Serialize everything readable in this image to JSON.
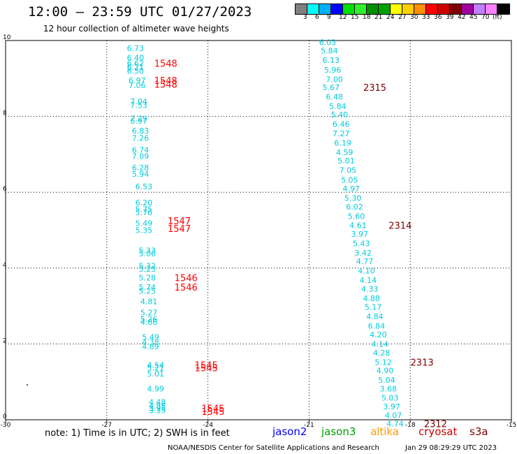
{
  "title": "12:00 — 23:59 UTC 01/27/2023",
  "subtitle": "12 hour collection of altimeter wave heights",
  "legend": {
    "colors": [
      "#808080",
      "#00ffff",
      "#00b0ff",
      "#0000ff",
      "#00e000",
      "#30f030",
      "#009000",
      "#00a000",
      "#ffff00",
      "#ffd000",
      "#ff9000",
      "#ff0000",
      "#d00000",
      "#800000",
      "#a000a0",
      "#c080ff",
      "#ff80ff",
      "#000000"
    ],
    "labels": [
      "3",
      "6",
      "9",
      "12",
      "15",
      "18",
      "21",
      "24",
      "27",
      "30",
      "33",
      "36",
      "39",
      "42",
      "45",
      "70",
      "(ft)"
    ]
  },
  "note": "note: 1) Time is in UTC; 2) SWH is in feet",
  "satellites": [
    {
      "name": "jason2",
      "color": "#0000ff"
    },
    {
      "name": "jason3",
      "color": "#00a000"
    },
    {
      "name": "altika",
      "color": "#ff9900"
    },
    {
      "name": "cryosat",
      "color": "#cc0000"
    },
    {
      "name": "s3a",
      "color": "#800000"
    }
  ],
  "footer_left": "NOAA/NESDIS Center for Satellite Applications and Research",
  "footer_right": "Jan 29 08:29:29 UTC 2023",
  "chart_data": {
    "type": "scatter",
    "xlim": [
      -30,
      -15
    ],
    "ylim": [
      0,
      10
    ],
    "x_ticks": [
      "-30",
      "-27",
      "-24",
      "-21",
      "-18",
      "-15"
    ],
    "y_ticks": [
      "0",
      "2",
      "4",
      "6",
      "8",
      "10"
    ],
    "grid": true,
    "data_label_color": "#00ccdd",
    "track1": [
      {
        "x": -26.15,
        "y": 9.8,
        "v": "6.73"
      },
      {
        "x": -26.15,
        "y": 9.55,
        "v": "6.40"
      },
      {
        "x": -26.15,
        "y": 9.4,
        "v": "6.62"
      },
      {
        "x": -26.15,
        "y": 9.3,
        "v": "6.21"
      },
      {
        "x": -26.15,
        "y": 9.2,
        "v": "6.50"
      },
      {
        "x": -26.1,
        "y": 8.95,
        "v": "6.97"
      },
      {
        "x": -26.1,
        "y": 8.82,
        "v": "7.06"
      },
      {
        "x": -26.05,
        "y": 8.4,
        "v": "7.04"
      },
      {
        "x": -26.05,
        "y": 8.3,
        "v": "7.53"
      },
      {
        "x": -26.05,
        "y": 7.95,
        "v": "7.29"
      },
      {
        "x": -26.05,
        "y": 7.88,
        "v": "6.97"
      },
      {
        "x": -26.0,
        "y": 7.62,
        "v": "6.83"
      },
      {
        "x": -26.0,
        "y": 7.43,
        "v": "7.26"
      },
      {
        "x": -26.0,
        "y": 7.12,
        "v": "6.74"
      },
      {
        "x": -26.0,
        "y": 6.95,
        "v": "7.09"
      },
      {
        "x": -26.0,
        "y": 6.65,
        "v": "6.28"
      },
      {
        "x": -26.0,
        "y": 6.48,
        "v": "5.94"
      },
      {
        "x": -25.9,
        "y": 6.15,
        "v": "6.53"
      },
      {
        "x": -25.9,
        "y": 5.73,
        "v": "6.20"
      },
      {
        "x": -25.9,
        "y": 5.55,
        "v": "5.75"
      },
      {
        "x": -25.9,
        "y": 5.47,
        "v": "5.76"
      },
      {
        "x": -25.9,
        "y": 5.18,
        "v": "5.49"
      },
      {
        "x": -25.9,
        "y": 5.0,
        "v": "5.35"
      },
      {
        "x": -25.8,
        "y": 4.47,
        "v": "5.33"
      },
      {
        "x": -25.8,
        "y": 4.38,
        "v": "5.06"
      },
      {
        "x": -25.8,
        "y": 4.06,
        "v": "5.32"
      },
      {
        "x": -25.8,
        "y": 3.98,
        "v": "5.23"
      },
      {
        "x": -25.8,
        "y": 3.75,
        "v": "5.28"
      },
      {
        "x": -25.8,
        "y": 3.5,
        "v": "5.74"
      },
      {
        "x": -25.8,
        "y": 3.4,
        "v": "5.25"
      },
      {
        "x": -25.75,
        "y": 3.12,
        "v": "4.81"
      },
      {
        "x": -25.75,
        "y": 2.83,
        "v": "5.27"
      },
      {
        "x": -25.75,
        "y": 2.65,
        "v": "5.26"
      },
      {
        "x": -25.75,
        "y": 2.58,
        "v": "4.86"
      },
      {
        "x": -25.7,
        "y": 2.18,
        "v": "5.49"
      },
      {
        "x": -25.7,
        "y": 2.05,
        "v": "4.38"
      },
      {
        "x": -25.7,
        "y": 1.93,
        "v": "4.89"
      },
      {
        "x": -25.55,
        "y": 1.45,
        "v": "4.54"
      },
      {
        "x": -25.55,
        "y": 1.37,
        "v": "5.21"
      },
      {
        "x": -25.55,
        "y": 1.22,
        "v": "5.01"
      },
      {
        "x": -25.55,
        "y": 0.82,
        "v": "4.99"
      },
      {
        "x": -25.5,
        "y": 0.47,
        "v": "4.48"
      },
      {
        "x": -25.5,
        "y": 0.37,
        "v": "4.85"
      },
      {
        "x": -25.5,
        "y": 0.3,
        "v": "3.95"
      },
      {
        "x": -25.5,
        "y": 0.25,
        "v": "3.35"
      }
    ],
    "track2": [
      {
        "x": -20.45,
        "y": 9.95,
        "v": "6.03"
      },
      {
        "x": -20.4,
        "y": 9.73,
        "v": "5.84"
      },
      {
        "x": -20.35,
        "y": 9.48,
        "v": "6.13"
      },
      {
        "x": -20.3,
        "y": 9.23,
        "v": "5.96"
      },
      {
        "x": -20.25,
        "y": 8.98,
        "v": "7.00"
      },
      {
        "x": -20.35,
        "y": 8.77,
        "v": "5.67"
      },
      {
        "x": -20.25,
        "y": 8.52,
        "v": "6.48"
      },
      {
        "x": -20.15,
        "y": 8.27,
        "v": "5.84"
      },
      {
        "x": -20.1,
        "y": 8.05,
        "v": "5.40"
      },
      {
        "x": -20.05,
        "y": 7.8,
        "v": "6.46"
      },
      {
        "x": -20.05,
        "y": 7.55,
        "v": "7.27"
      },
      {
        "x": -20.0,
        "y": 7.3,
        "v": "6.19"
      },
      {
        "x": -19.95,
        "y": 7.05,
        "v": "4.59"
      },
      {
        "x": -19.9,
        "y": 6.83,
        "v": "5.01"
      },
      {
        "x": -19.85,
        "y": 6.58,
        "v": "7.05"
      },
      {
        "x": -19.8,
        "y": 6.33,
        "v": "5.05"
      },
      {
        "x": -19.75,
        "y": 6.1,
        "v": "4.97"
      },
      {
        "x": -19.7,
        "y": 5.85,
        "v": "5.30"
      },
      {
        "x": -19.65,
        "y": 5.62,
        "v": "6.02"
      },
      {
        "x": -19.6,
        "y": 5.37,
        "v": "5.60"
      },
      {
        "x": -19.55,
        "y": 5.13,
        "v": "4.61"
      },
      {
        "x": -19.5,
        "y": 4.9,
        "v": "3.97"
      },
      {
        "x": -19.45,
        "y": 4.65,
        "v": "5.43"
      },
      {
        "x": -19.4,
        "y": 4.4,
        "v": "3.42"
      },
      {
        "x": -19.35,
        "y": 4.18,
        "v": "4.77"
      },
      {
        "x": -19.3,
        "y": 3.93,
        "v": "4.10"
      },
      {
        "x": -19.25,
        "y": 3.68,
        "v": "4.14"
      },
      {
        "x": -19.2,
        "y": 3.45,
        "v": "4.33"
      },
      {
        "x": -19.15,
        "y": 3.2,
        "v": "4.88"
      },
      {
        "x": -19.1,
        "y": 2.97,
        "v": "5.17"
      },
      {
        "x": -19.05,
        "y": 2.73,
        "v": "4.84"
      },
      {
        "x": -19.0,
        "y": 2.48,
        "v": "6.84"
      },
      {
        "x": -18.95,
        "y": 2.25,
        "v": "4.20"
      },
      {
        "x": -18.9,
        "y": 2.0,
        "v": "4.14"
      },
      {
        "x": -18.85,
        "y": 1.77,
        "v": "4.28"
      },
      {
        "x": -18.8,
        "y": 1.52,
        "v": "5.12"
      },
      {
        "x": -18.75,
        "y": 1.3,
        "v": "4.90"
      },
      {
        "x": -18.7,
        "y": 1.05,
        "v": "5.04"
      },
      {
        "x": -18.65,
        "y": 0.82,
        "v": "3.68"
      },
      {
        "x": -18.6,
        "y": 0.58,
        "v": "5.03"
      },
      {
        "x": -18.55,
        "y": 0.35,
        "v": "3.97"
      },
      {
        "x": -18.5,
        "y": 0.12,
        "v": "4.07"
      },
      {
        "x": -18.45,
        "y": -0.1,
        "v": "4.74"
      }
    ],
    "time_labels": [
      {
        "x": -25.25,
        "y": 9.4,
        "t": "1548",
        "color": "#ff0000"
      },
      {
        "x": -25.25,
        "y": 8.95,
        "t": "1548",
        "color": "#ff0000"
      },
      {
        "x": -25.25,
        "y": 8.85,
        "t": "1548",
        "color": "#ff0000"
      },
      {
        "x": -24.85,
        "y": 5.25,
        "t": "1547",
        "color": "#ff0000"
      },
      {
        "x": -24.85,
        "y": 5.05,
        "t": "1547",
        "color": "#ff0000"
      },
      {
        "x": -24.65,
        "y": 3.75,
        "t": "1546",
        "color": "#ff0000"
      },
      {
        "x": -24.65,
        "y": 3.5,
        "t": "1546",
        "color": "#ff0000"
      },
      {
        "x": -24.05,
        "y": 1.45,
        "t": "1545",
        "color": "#ff0000"
      },
      {
        "x": -24.05,
        "y": 1.37,
        "t": "1545",
        "color": "#ff0000"
      },
      {
        "x": -23.85,
        "y": 0.3,
        "t": "1545",
        "color": "#ff0000"
      },
      {
        "x": -23.85,
        "y": 0.22,
        "t": "1545",
        "color": "#ff0000"
      },
      {
        "x": -19.05,
        "y": 8.77,
        "t": "2315",
        "color": "#800000"
      },
      {
        "x": -18.3,
        "y": 5.13,
        "t": "2314",
        "color": "#800000"
      },
      {
        "x": -17.65,
        "y": 1.52,
        "t": "2313",
        "color": "#800000"
      },
      {
        "x": -17.25,
        "y": -0.1,
        "t": "2312",
        "color": "#800000"
      }
    ]
  }
}
